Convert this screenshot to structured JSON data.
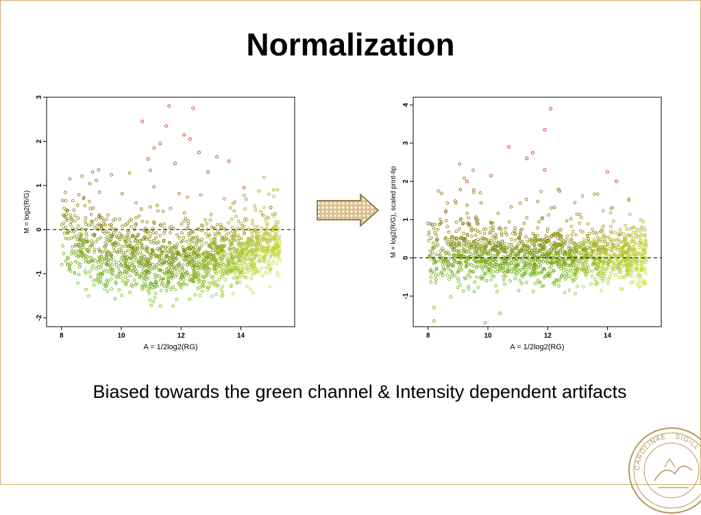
{
  "title": "Normalization",
  "caption": "Biased towards the green channel & Intensity dependent artifacts",
  "seal": {
    "text": "CAROLINAE · SIGILL · ADVT · RVMQVE"
  },
  "colors": {
    "frame": "#c8ad6a",
    "arrow_fill": "#d9bf8c",
    "arrow_stroke": "#7a5a2a",
    "point_green": "#6abf1e",
    "point_yellow": "#d8e63a",
    "point_brown": "#9a6a10",
    "point_red": "#e0402a"
  },
  "chart_data": [
    {
      "type": "scatter",
      "name": "before",
      "xlabel": "A = 1/2log2(RG)",
      "ylabel": "M = log2(R/G)",
      "xlim": [
        7.5,
        15.8
      ],
      "ylim": [
        -2.2,
        3.0
      ],
      "xticks": [
        {
          "value": 8,
          "label": "8"
        },
        {
          "value": 10,
          "label": "10"
        },
        {
          "value": 12,
          "label": "12"
        },
        {
          "value": 14,
          "label": "14"
        }
      ],
      "yticks": [
        {
          "value": -2,
          "label": "-2"
        },
        {
          "value": -1,
          "label": "-1"
        },
        {
          "value": 0,
          "label": "0"
        },
        {
          "value": 1,
          "label": "1"
        },
        {
          "value": 2,
          "label": "2"
        },
        {
          "value": 3,
          "label": "3"
        }
      ],
      "reference_line": 0,
      "trend": [
        [
          8.0,
          -0.15
        ],
        [
          9.0,
          -0.45
        ],
        [
          10.0,
          -0.65
        ],
        [
          11.0,
          -0.75
        ],
        [
          12.0,
          -0.78
        ],
        [
          13.0,
          -0.72
        ],
        [
          14.0,
          -0.6
        ],
        [
          15.2,
          -0.4
        ]
      ],
      "outliers": [
        [
          11.6,
          2.8
        ],
        [
          12.4,
          2.75
        ],
        [
          10.7,
          2.45
        ],
        [
          11.5,
          2.35
        ],
        [
          12.1,
          2.15
        ],
        [
          12.3,
          2.05
        ],
        [
          11.3,
          1.95
        ],
        [
          11.1,
          1.85
        ],
        [
          12.6,
          1.75
        ],
        [
          13.2,
          1.65
        ],
        [
          13.6,
          1.55
        ],
        [
          10.9,
          1.6
        ],
        [
          11.8,
          1.5
        ],
        [
          12.9,
          1.3
        ],
        [
          14.1,
          0.95
        ],
        [
          15.0,
          0.5
        ]
      ]
    },
    {
      "type": "scatter",
      "name": "after",
      "xlabel": "A = 1/2log2(RG)",
      "ylabel": "M = log2(R/G), scaled print-tip",
      "xlim": [
        7.5,
        15.8
      ],
      "ylim": [
        -1.8,
        4.2
      ],
      "xticks": [
        {
          "value": 8,
          "label": "8"
        },
        {
          "value": 10,
          "label": "10"
        },
        {
          "value": 12,
          "label": "12"
        },
        {
          "value": 14,
          "label": "14"
        }
      ],
      "yticks": [
        {
          "value": -1,
          "label": "-1"
        },
        {
          "value": 0,
          "label": "0"
        },
        {
          "value": 1,
          "label": "1"
        },
        {
          "value": 2,
          "label": "2"
        },
        {
          "value": 3,
          "label": "3"
        },
        {
          "value": 4,
          "label": "4"
        }
      ],
      "reference_line": 0,
      "trend": [
        [
          8.0,
          0.0
        ],
        [
          9.0,
          0.05
        ],
        [
          10.0,
          0.05
        ],
        [
          11.0,
          0.02
        ],
        [
          12.0,
          0.0
        ],
        [
          13.0,
          0.0
        ],
        [
          14.0,
          0.0
        ],
        [
          15.2,
          0.0
        ]
      ],
      "outliers": [
        [
          12.1,
          3.9
        ],
        [
          11.9,
          3.35
        ],
        [
          10.7,
          2.9
        ],
        [
          11.5,
          2.75
        ],
        [
          11.3,
          2.6
        ],
        [
          11.9,
          2.3
        ],
        [
          14.0,
          2.25
        ],
        [
          14.3,
          2.0
        ],
        [
          10.1,
          2.15
        ],
        [
          9.3,
          2.0
        ],
        [
          12.4,
          1.75
        ],
        [
          8.0,
          0.9
        ],
        [
          8.2,
          -1.3
        ],
        [
          8.2,
          -1.65
        ],
        [
          9.9,
          -1.7
        ],
        [
          10.4,
          -1.45
        ]
      ]
    }
  ]
}
